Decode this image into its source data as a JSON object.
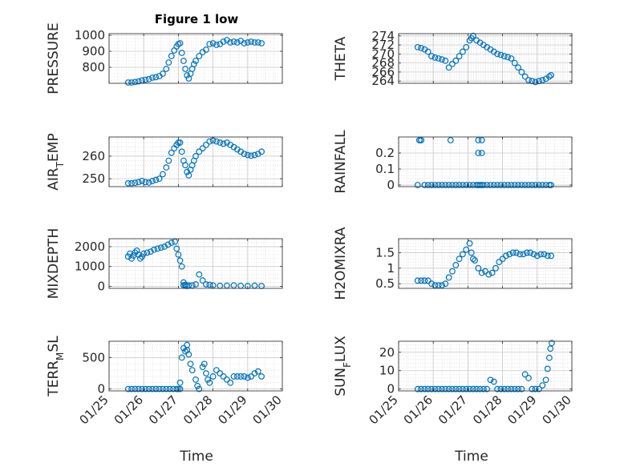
{
  "title": "Figure 1 low",
  "xlabels": [
    "Time",
    "Time"
  ],
  "x_tick_labels": [
    "01/25",
    "01/26",
    "01/27",
    "01/28",
    "01/29",
    "01/30"
  ],
  "marker_color": "#0072BD",
  "chart_data": [
    {
      "type": "scatter",
      "ylabel": "PRESSURE",
      "yticks": [
        "800",
        "900",
        "1000"
      ],
      "ylim": [
        700,
        1010
      ],
      "xlim": [
        0,
        5
      ],
      "x": [
        0.55,
        0.65,
        0.75,
        0.85,
        0.95,
        1.05,
        1.15,
        1.25,
        1.35,
        1.45,
        1.55,
        1.65,
        1.72,
        1.8,
        1.88,
        1.95,
        2.0,
        2.05,
        2.1,
        2.15,
        2.2,
        2.25,
        2.3,
        2.35,
        2.4,
        2.45,
        2.5,
        2.6,
        2.7,
        2.8,
        2.9,
        3.0,
        3.1,
        3.2,
        3.3,
        3.4,
        3.5,
        3.6,
        3.7,
        3.8,
        3.9,
        4.0,
        4.1,
        4.2,
        4.3,
        4.4
      ],
      "y": [
        705,
        705,
        708,
        712,
        718,
        722,
        726,
        735,
        738,
        745,
        760,
        790,
        830,
        870,
        905,
        930,
        945,
        950,
        890,
        840,
        790,
        750,
        730,
        760,
        790,
        820,
        840,
        870,
        895,
        910,
        945,
        950,
        940,
        945,
        960,
        970,
        955,
        960,
        955,
        965,
        950,
        955,
        960,
        955,
        955,
        950
      ]
    },
    {
      "type": "scatter",
      "ylabel": "THETA",
      "yticks": [
        "264",
        "266",
        "268",
        "270",
        "272",
        "274"
      ],
      "ylim": [
        263.5,
        274.5
      ],
      "xlim": [
        0,
        5
      ],
      "x": [
        0.55,
        0.65,
        0.75,
        0.85,
        0.95,
        1.05,
        1.15,
        1.25,
        1.35,
        1.45,
        1.55,
        1.65,
        1.75,
        1.85,
        1.95,
        2.05,
        2.1,
        2.15,
        2.25,
        2.35,
        2.45,
        2.55,
        2.65,
        2.75,
        2.85,
        2.95,
        3.05,
        3.15,
        3.25,
        3.35,
        3.45,
        3.55,
        3.65,
        3.75,
        3.85,
        3.95,
        4.05,
        4.15,
        4.25,
        4.35,
        4.4
      ],
      "y": [
        271.5,
        271.3,
        271,
        270.5,
        269.5,
        269.2,
        269,
        268.8,
        268.5,
        267,
        267.8,
        268.5,
        269.5,
        270.5,
        271.5,
        273,
        273.5,
        274,
        273,
        272.5,
        272,
        271.5,
        271,
        270.5,
        270,
        269.8,
        269.5,
        269.3,
        269,
        268,
        267,
        266,
        265,
        264.2,
        264,
        263.8,
        264,
        264.2,
        264.5,
        265,
        265.3
      ]
    },
    {
      "type": "scatter",
      "ylabel": "AIR_T EMP",
      "ylabel_main": "AIR",
      "ylabel_sub": "T",
      "ylabel_rest": "EMP",
      "yticks": [
        "250",
        "260"
      ],
      "ylim": [
        246.5,
        268.5
      ],
      "xlim": [
        0,
        5
      ],
      "x": [
        0.55,
        0.65,
        0.75,
        0.85,
        0.95,
        1.05,
        1.15,
        1.25,
        1.35,
        1.45,
        1.55,
        1.65,
        1.72,
        1.8,
        1.88,
        1.95,
        2.0,
        2.05,
        2.1,
        2.15,
        2.2,
        2.25,
        2.3,
        2.35,
        2.4,
        2.45,
        2.5,
        2.6,
        2.7,
        2.8,
        2.9,
        3.0,
        3.1,
        3.2,
        3.3,
        3.4,
        3.5,
        3.6,
        3.7,
        3.8,
        3.9,
        4.0,
        4.1,
        4.2,
        4.3,
        4.4
      ],
      "y": [
        248,
        248,
        248.2,
        248.5,
        249,
        248.5,
        248.3,
        249,
        249.5,
        250,
        252,
        255,
        258,
        261.5,
        263.5,
        265,
        266,
        266,
        262,
        258,
        256,
        253,
        251.5,
        254,
        256,
        258,
        260,
        262,
        263.5,
        265,
        266.5,
        267,
        266.5,
        266,
        265.5,
        266,
        265,
        264,
        263,
        262,
        261,
        260.5,
        260.2,
        260.5,
        261,
        262
      ]
    },
    {
      "type": "scatter",
      "ylabel": "RAINFALL",
      "yticks": [
        "0",
        "0.1",
        "0.2"
      ],
      "ylim": [
        -0.01,
        0.3
      ],
      "xlim": [
        0,
        5
      ],
      "x": [
        0.55,
        0.6,
        0.65,
        0.75,
        0.85,
        0.95,
        1.05,
        1.15,
        1.25,
        1.35,
        1.45,
        1.55,
        1.65,
        1.75,
        1.85,
        1.95,
        2.05,
        2.15,
        2.25,
        2.3,
        2.35,
        2.4,
        2.45,
        2.55,
        2.65,
        2.75,
        2.85,
        2.95,
        3.05,
        3.15,
        3.25,
        3.35,
        3.45,
        3.55,
        3.65,
        3.75,
        3.85,
        3.95,
        4.05,
        4.15,
        4.25,
        4.35,
        4.4,
        1.5,
        2.3,
        2.4,
        2.3,
        2.4,
        0.6,
        0.65
      ],
      "y": [
        0,
        0.28,
        0.28,
        0,
        0,
        0,
        0,
        0,
        0,
        0,
        0,
        0,
        0,
        0,
        0,
        0,
        0,
        0,
        0,
        0,
        0,
        0,
        0,
        0,
        0,
        0,
        0,
        0,
        0,
        0,
        0,
        0,
        0,
        0,
        0,
        0,
        0,
        0,
        0,
        0,
        0,
        0,
        0,
        0.28,
        0.28,
        0.28,
        0.2,
        0.2,
        0.28,
        0.28
      ]
    },
    {
      "type": "scatter",
      "ylabel": "MIXDEPTH",
      "yticks": [
        "0",
        "1000",
        "2000"
      ],
      "ylim": [
        -100,
        2400
      ],
      "xlim": [
        0,
        5
      ],
      "x": [
        0.55,
        0.6,
        0.65,
        0.7,
        0.75,
        0.8,
        0.85,
        0.9,
        0.95,
        1.0,
        1.1,
        1.2,
        1.3,
        1.4,
        1.5,
        1.6,
        1.7,
        1.8,
        1.9,
        1.95,
        2.0,
        2.05,
        2.1,
        2.15,
        2.2,
        2.3,
        2.4,
        2.5,
        2.6,
        2.7,
        2.8,
        2.9,
        3.0,
        3.2,
        3.4,
        3.6,
        3.8,
        4.0,
        4.2,
        4.4,
        2.15,
        2.2,
        2.25
      ],
      "y": [
        1500,
        1650,
        1400,
        1550,
        1700,
        1800,
        1600,
        1400,
        1500,
        1650,
        1700,
        1750,
        1850,
        1900,
        1950,
        2000,
        2100,
        2200,
        2250,
        1900,
        1600,
        1300,
        1000,
        200,
        80,
        50,
        50,
        100,
        600,
        300,
        100,
        80,
        50,
        30,
        40,
        50,
        30,
        20,
        40,
        20,
        60,
        30,
        20
      ]
    },
    {
      "type": "scatter",
      "ylabel": "H2OMIXRA",
      "yticks": [
        "0.5",
        "1",
        "1.5"
      ],
      "ylim": [
        0.35,
        1.95
      ],
      "xlim": [
        0,
        5
      ],
      "x": [
        0.55,
        0.65,
        0.75,
        0.85,
        0.95,
        1.05,
        1.15,
        1.25,
        1.35,
        1.45,
        1.55,
        1.65,
        1.75,
        1.85,
        1.95,
        2.05,
        2.1,
        2.15,
        2.2,
        2.3,
        2.4,
        2.5,
        2.6,
        2.7,
        2.8,
        2.9,
        3.0,
        3.1,
        3.2,
        3.3,
        3.4,
        3.5,
        3.6,
        3.7,
        3.8,
        3.9,
        4.0,
        4.1,
        4.2,
        4.3,
        4.4
      ],
      "y": [
        0.6,
        0.6,
        0.6,
        0.6,
        0.5,
        0.45,
        0.45,
        0.45,
        0.5,
        0.7,
        0.9,
        1.1,
        1.3,
        1.45,
        1.6,
        1.8,
        1.5,
        1.3,
        1.25,
        1.0,
        0.85,
        0.9,
        0.8,
        0.85,
        1.0,
        1.2,
        1.3,
        1.4,
        1.45,
        1.5,
        1.5,
        1.45,
        1.45,
        1.5,
        1.5,
        1.45,
        1.4,
        1.45,
        1.45,
        1.4,
        1.4
      ]
    },
    {
      "type": "scatter",
      "ylabel": "TERR_M SL",
      "ylabel_main": "TERR",
      "ylabel_sub": "M",
      "ylabel_rest": "SL",
      "yticks": [
        "0",
        "500"
      ],
      "ylim": [
        -30,
        760
      ],
      "xlim": [
        0,
        5
      ],
      "x": [
        0.55,
        0.65,
        0.75,
        0.85,
        0.95,
        1.05,
        1.15,
        1.25,
        1.35,
        1.45,
        1.55,
        1.65,
        1.75,
        1.85,
        1.95,
        2.0,
        2.05,
        2.1,
        2.15,
        2.2,
        2.25,
        2.3,
        2.35,
        2.4,
        2.5,
        2.55,
        2.6,
        2.7,
        2.75,
        2.8,
        2.85,
        2.9,
        3.0,
        3.1,
        3.2,
        3.3,
        3.4,
        3.5,
        3.6,
        3.7,
        3.8,
        3.9,
        4.0,
        4.1,
        4.2,
        4.3,
        4.4,
        2.05,
        2.25
      ],
      "y": [
        0,
        0,
        0,
        0,
        0,
        0,
        0,
        0,
        0,
        0,
        0,
        0,
        0,
        0,
        0,
        0,
        100,
        500,
        650,
        600,
        700,
        550,
        400,
        300,
        150,
        50,
        0,
        350,
        400,
        250,
        150,
        100,
        200,
        300,
        250,
        200,
        150,
        100,
        200,
        200,
        200,
        200,
        180,
        200,
        250,
        280,
        200,
        0,
        620
      ]
    },
    {
      "type": "scatter",
      "ylabel": "SUN_F LUX",
      "ylabel_main": "SUN",
      "ylabel_sub": "F",
      "ylabel_rest": "LUX",
      "yticks": [
        "0",
        "10",
        "20"
      ],
      "ylim": [
        -1,
        26
      ],
      "xlim": [
        0,
        5
      ],
      "x": [
        0.55,
        0.65,
        0.75,
        0.85,
        0.95,
        1.05,
        1.15,
        1.25,
        1.35,
        1.45,
        1.55,
        1.65,
        1.75,
        1.85,
        1.95,
        2.05,
        2.15,
        2.25,
        2.35,
        2.45,
        2.55,
        2.65,
        2.75,
        2.85,
        2.95,
        3.05,
        3.15,
        3.25,
        3.35,
        3.45,
        3.55,
        3.65,
        3.75,
        3.85,
        3.95,
        4.05,
        4.15,
        4.25,
        4.3,
        4.35,
        4.38,
        4.42
      ],
      "y": [
        0,
        0,
        0,
        0,
        0,
        0,
        0,
        0,
        0,
        0,
        0,
        0,
        0,
        0,
        0,
        0,
        0,
        0,
        0,
        0,
        0,
        5,
        4,
        0,
        0,
        0,
        0,
        0,
        0,
        0,
        0,
        8,
        6,
        0,
        0,
        0,
        2,
        5,
        11,
        17,
        22,
        25
      ]
    }
  ]
}
